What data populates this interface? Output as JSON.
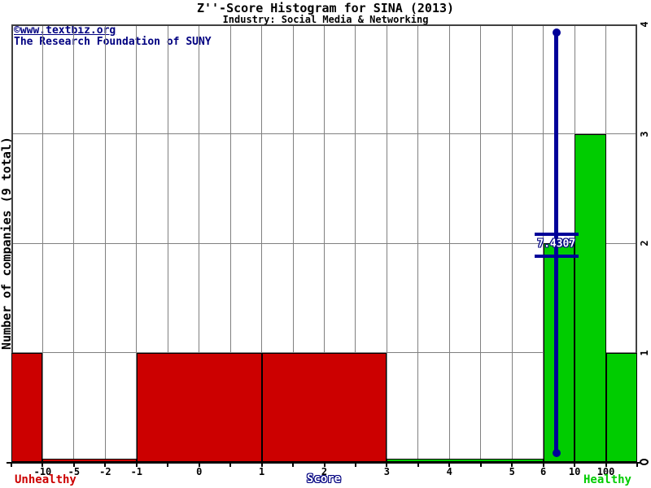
{
  "header": {
    "title": "Z''-Score Histogram for SINA (2013)",
    "subtitle": "Industry: Social Media & Networking"
  },
  "watermark": {
    "line1": "©www.textbiz.org",
    "line2": "The Research Foundation of SUNY"
  },
  "chart_data": {
    "type": "bar",
    "title": "Z''-Score Histogram for SINA (2013)",
    "subtitle": "Industry: Social Media & Networking",
    "xlabel": "Score",
    "ylabel": "Number of companies (9 total)",
    "total_companies": 9,
    "ylim": [
      0,
      4
    ],
    "grid": true,
    "y_ticks": [
      "0",
      "1",
      "2",
      "3",
      "4"
    ],
    "x_ticks": [
      {
        "label": "-10",
        "i": 1
      },
      {
        "label": "-5",
        "i": 2
      },
      {
        "label": "-2",
        "i": 3
      },
      {
        "label": "-1",
        "i": 4
      },
      {
        "label": "0",
        "i": 6
      },
      {
        "label": "1",
        "i": 8
      },
      {
        "label": "2",
        "i": 10
      },
      {
        "label": "3",
        "i": 12
      },
      {
        "label": "4",
        "i": 14
      },
      {
        "label": "5",
        "i": 16
      },
      {
        "label": "6",
        "i": 17
      },
      {
        "label": "10",
        "i": 18
      },
      {
        "label": "100",
        "i": 19
      }
    ],
    "bins": [
      {
        "range": "below -10",
        "count": 1,
        "status": "unhealthy",
        "fi": 0,
        "ti": 1
      },
      {
        "range": "-10 to -1",
        "count": 0,
        "status": "unhealthy",
        "fi": 1,
        "ti": 4
      },
      {
        "range": "-1 to 1",
        "count": 1,
        "status": "unhealthy",
        "fi": 4,
        "ti": 8
      },
      {
        "range": "1 to 3",
        "count": 1,
        "status": "unhealthy",
        "fi": 8,
        "ti": 12
      },
      {
        "range": "3 to 6",
        "count": 0,
        "status": "healthy",
        "fi": 12,
        "ti": 17
      },
      {
        "range": "6 to 10",
        "count": 2,
        "status": "healthy",
        "fi": 17,
        "ti": 18
      },
      {
        "range": "10 to 100",
        "count": 3,
        "status": "healthy",
        "fi": 18,
        "ti": 19
      },
      {
        "range": "above 100",
        "count": 1,
        "status": "healthy",
        "fi": 19,
        "ti": 20
      }
    ],
    "marker": {
      "value": 7.4307,
      "label": "7.4307",
      "between": [
        "6",
        "10"
      ]
    },
    "legend": {
      "left": {
        "text": "Unhealthy",
        "color": "#CC0000"
      },
      "center": {
        "text": "Score",
        "color": "#000080"
      },
      "right": {
        "text": "Healthy",
        "color": "#00CC00"
      }
    },
    "colors": {
      "unhealthy": "#CC0000",
      "healthy": "#00CC00",
      "marker": "#000099",
      "navy_text": "#000080",
      "grid": "#808080",
      "border": "#404040",
      "axis": "#000000",
      "bar_outline": "#000000"
    }
  }
}
